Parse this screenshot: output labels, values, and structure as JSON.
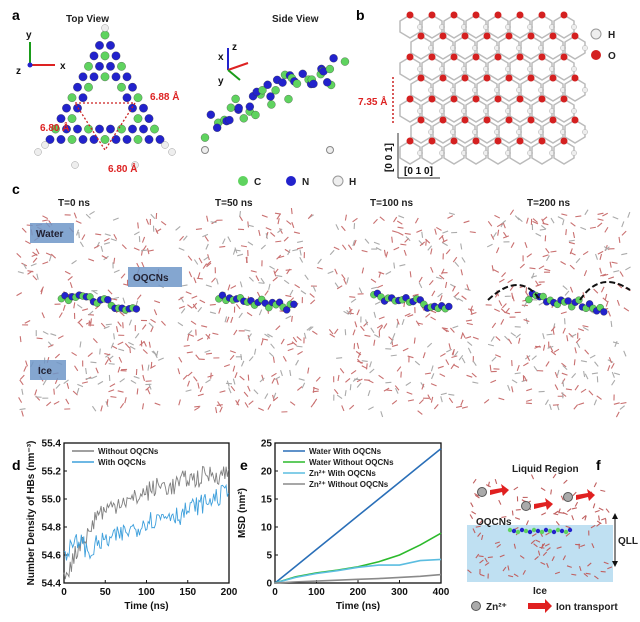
{
  "panels": {
    "a": {
      "label": "a",
      "top_view": "Top View",
      "side_view": "Side View",
      "dist1": "6.88 Å",
      "dist2": "6.80 Å",
      "dist3": "6.80 Å",
      "axes_top": {
        "y": "y",
        "z": "z",
        "x": "x"
      },
      "axes_side": {
        "z": "z",
        "x": "x",
        "y": "y"
      },
      "legend": [
        "C",
        "N",
        "H"
      ]
    },
    "b": {
      "label": "b",
      "spacing": "7.35 Å",
      "dir_vertical": "[0 0 1]",
      "dir_horizontal": "[0 1 0]",
      "legend": [
        "H",
        "O"
      ]
    },
    "c": {
      "label": "c",
      "times": [
        "T=0 ns",
        "T=50 ns",
        "T=100 ns",
        "T=200 ns"
      ],
      "tags": {
        "water": "Water",
        "oqcns": "OQCNs",
        "ice": "Ice"
      }
    },
    "d": {
      "label": "d"
    },
    "e": {
      "label": "e"
    },
    "f": {
      "label": "f",
      "liquid": "Liquid Region",
      "qll": "QLL",
      "oqcns": "OQCNs",
      "ice": "Ice",
      "zn": "Zn²⁺",
      "ion": "Ion transport"
    }
  },
  "colors": {
    "C": "#5fd35f",
    "N": "#2222cc",
    "H": "#e8e8e8",
    "O": "#d42020",
    "accent_red": "#dd2222"
  },
  "chart_data": [
    {
      "type": "line",
      "xlabel": "Time (ns)",
      "ylabel": "Number Density of HBs (nm⁻³)",
      "xlim": [
        0,
        200
      ],
      "ylim": [
        54.4,
        55.4
      ],
      "xticks": [
        "0",
        "50",
        "100",
        "150",
        "200"
      ],
      "yticks": [
        "54.4",
        "54.6",
        "54.8",
        "55.0",
        "55.2",
        "55.4"
      ],
      "legend": "top-left",
      "x": [
        0,
        10,
        20,
        30,
        40,
        50,
        60,
        70,
        80,
        90,
        100,
        110,
        120,
        130,
        140,
        150,
        160,
        170,
        180,
        190,
        200
      ],
      "series": [
        {
          "name": "Without OQCNs",
          "color": "#808080",
          "values": [
            54.45,
            54.55,
            54.7,
            54.75,
            54.9,
            54.92,
            54.95,
            55.0,
            54.98,
            55.02,
            55.05,
            55.08,
            55.1,
            55.08,
            55.12,
            55.15,
            55.14,
            55.17,
            55.18,
            55.17,
            55.2
          ]
        },
        {
          "name": "With OQCNs",
          "color": "#3fa0dc",
          "values": [
            54.62,
            54.65,
            54.72,
            54.6,
            54.68,
            54.7,
            54.72,
            54.75,
            54.78,
            54.8,
            54.85,
            54.85,
            54.88,
            54.9,
            54.88,
            54.92,
            54.95,
            54.97,
            55.0,
            55.02,
            55.1
          ]
        }
      ]
    },
    {
      "type": "line",
      "xlabel": "Time (ns)",
      "ylabel": "MSD (nm²)",
      "xlim": [
        0,
        400
      ],
      "ylim": [
        0,
        25
      ],
      "xticks": [
        "0",
        "100",
        "200",
        "300",
        "400"
      ],
      "yticks": [
        "0",
        "5",
        "10",
        "15",
        "20",
        "25"
      ],
      "legend": "top-left",
      "x": [
        0,
        50,
        100,
        150,
        200,
        250,
        300,
        350,
        400
      ],
      "series": [
        {
          "name": "Water With OQCNs",
          "color": "#2a6fb8",
          "values": [
            0,
            3,
            6,
            9,
            12,
            15,
            18,
            21,
            24
          ]
        },
        {
          "name": "Water Without OQCNs",
          "color": "#2cba2c",
          "values": [
            0,
            1.1,
            1.8,
            2.3,
            2.9,
            3.8,
            5,
            6.8,
            8.9
          ]
        },
        {
          "name": "Zn²⁺ With OQCNs",
          "color": "#5bbde0",
          "values": [
            0,
            1,
            1.7,
            2.2,
            2.8,
            3.2,
            3.2,
            4,
            4.2
          ]
        },
        {
          "name": "Zn²⁺ Without OQCNs",
          "color": "#8a8a8a",
          "values": [
            0,
            0.2,
            0.35,
            0.5,
            0.65,
            0.8,
            1.0,
            1.2,
            1.5
          ]
        }
      ]
    }
  ]
}
